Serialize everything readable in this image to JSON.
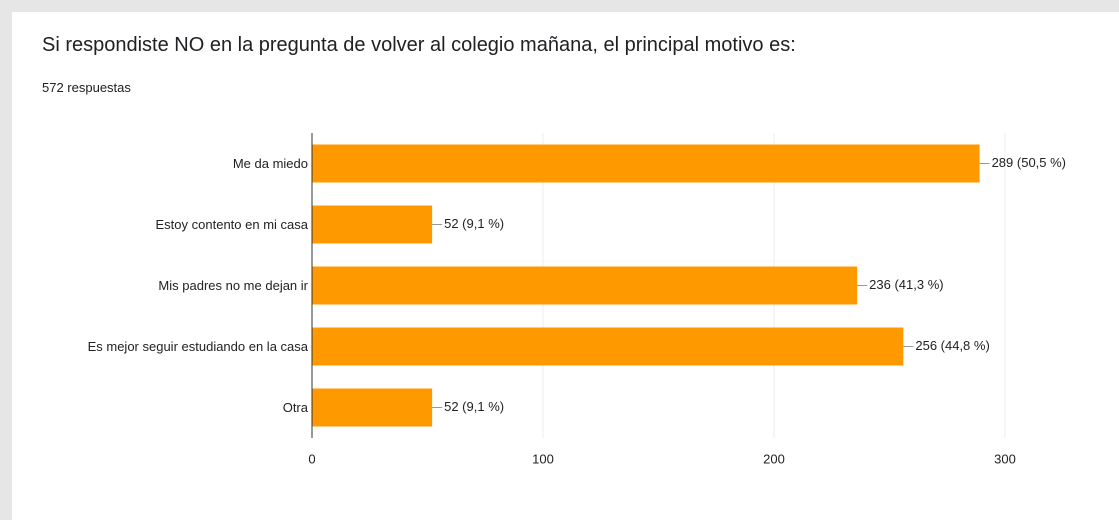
{
  "chart_data": {
    "type": "bar",
    "orientation": "horizontal",
    "title": "Si respondiste NO en la pregunta de volver al colegio mañana, el principal motivo es:",
    "subtitle": "572 respuestas",
    "categories": [
      "Me da miedo",
      "Estoy contento en mi casa",
      "Mis padres no me dejan ir",
      "Es mejor seguir estudiando en la casa",
      "Otra"
    ],
    "values": [
      289,
      52,
      236,
      256,
      52
    ],
    "value_labels": [
      "289 (50,5 %)",
      "52 (9,1 %)",
      "236 (41,3 %)",
      "256 (44,8 %)",
      "52 (9,1 %)"
    ],
    "color": "#ff9900",
    "xlim": [
      0,
      300
    ],
    "xticks": [
      0,
      100,
      200,
      300
    ],
    "grid": true
  }
}
